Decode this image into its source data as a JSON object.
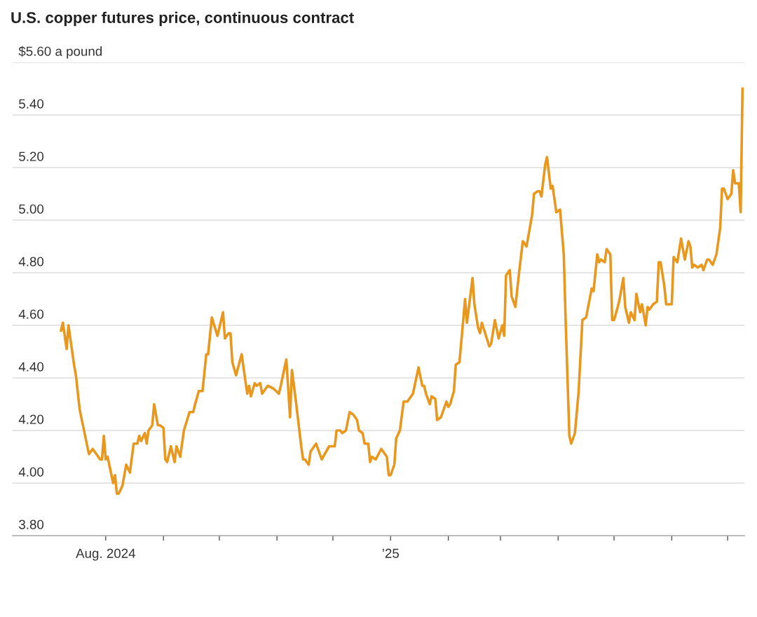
{
  "chart_data": {
    "type": "line",
    "title": "U.S. copper futures price, continuous contract",
    "x": [
      "2024-07-08",
      "2024-07-09",
      "2024-07-11",
      "2024-07-12",
      "2024-07-15",
      "2024-07-16",
      "2024-07-18",
      "2024-07-23",
      "2024-07-25",
      "2024-07-26",
      "2024-07-29",
      "2024-07-30",
      "2024-07-31",
      "2024-08-01",
      "2024-08-02",
      "2024-08-05",
      "2024-08-06",
      "2024-08-07",
      "2024-08-08",
      "2024-08-10",
      "2024-08-12",
      "2024-08-14",
      "2024-08-16",
      "2024-08-18",
      "2024-08-19",
      "2024-08-20",
      "2024-08-22",
      "2024-08-23",
      "2024-08-24",
      "2024-08-26",
      "2024-08-27",
      "2024-08-29",
      "2024-08-30",
      "2024-09-01",
      "2024-09-02",
      "2024-09-03",
      "2024-09-05",
      "2024-09-07",
      "2024-09-08",
      "2024-09-10",
      "2024-09-12",
      "2024-09-15",
      "2024-09-17",
      "2024-09-18",
      "2024-09-20",
      "2024-09-22",
      "2024-09-24",
      "2024-09-25",
      "2024-09-27",
      "2024-09-30",
      "2024-10-03",
      "2024-10-04",
      "2024-10-06",
      "2024-10-07",
      "2024-10-08",
      "2024-10-10",
      "2024-10-13",
      "2024-10-16",
      "2024-10-17",
      "2024-10-18",
      "2024-10-20",
      "2024-10-21",
      "2024-10-23",
      "2024-10-24",
      "2024-10-27",
      "2024-10-30",
      "2024-11-02",
      "2024-11-03",
      "2024-11-06",
      "2024-11-08",
      "2024-11-09",
      "2024-11-11",
      "2024-11-14",
      "2024-11-15",
      "2024-11-16",
      "2024-11-18",
      "2024-11-19",
      "2024-11-22",
      "2024-11-25",
      "2024-11-29",
      "2024-12-02",
      "2024-12-03",
      "2024-12-05",
      "2024-12-06",
      "2024-12-08",
      "2024-12-10",
      "2024-12-12",
      "2024-12-14",
      "2024-12-15",
      "2024-12-17",
      "2024-12-18",
      "2024-12-20",
      "2024-12-21",
      "2024-12-22",
      "2024-12-24",
      "2024-12-27",
      "2024-12-28",
      "2024-12-30",
      "2024-12-31",
      "2025-01-01",
      "2025-01-03",
      "2025-01-04",
      "2025-01-06",
      "2025-01-08",
      "2025-01-10",
      "2025-01-13",
      "2025-01-16",
      "2025-01-18",
      "2025-01-19",
      "2025-01-20",
      "2025-01-22",
      "2025-01-23",
      "2025-01-25",
      "2025-01-26",
      "2025-01-28",
      "2025-01-30",
      "2025-01-31",
      "2025-02-01",
      "2025-02-02",
      "2025-02-04",
      "2025-02-05",
      "2025-02-07",
      "2025-02-10",
      "2025-02-11",
      "2025-02-14",
      "2025-02-15",
      "2025-02-17",
      "2025-02-18",
      "2025-02-19",
      "2025-02-23",
      "2025-02-24",
      "2025-02-26",
      "2025-02-28",
      "2025-03-02",
      "2025-03-03",
      "2025-03-04",
      "2025-03-06",
      "2025-03-07",
      "2025-03-09",
      "2025-03-11",
      "2025-03-13",
      "2025-03-15",
      "2025-03-18",
      "2025-03-19",
      "2025-03-21",
      "2025-03-22",
      "2025-03-23",
      "2025-03-25",
      "2025-03-26",
      "2025-03-28",
      "2025-03-29",
      "2025-03-31",
      "2025-04-02",
      "2025-04-04",
      "2025-04-05",
      "2025-04-07",
      "2025-04-08",
      "2025-04-10",
      "2025-04-12",
      "2025-04-14",
      "2025-04-16",
      "2025-04-19",
      "2025-04-20",
      "2025-04-22",
      "2025-04-23",
      "2025-04-24",
      "2025-04-26",
      "2025-04-27",
      "2025-04-29",
      "2025-04-30",
      "2025-05-01",
      "2025-05-03",
      "2025-05-04",
      "2025-05-06",
      "2025-05-07",
      "2025-05-09",
      "2025-05-10",
      "2025-05-12",
      "2025-05-13",
      "2025-05-15",
      "2025-05-16",
      "2025-05-18",
      "2025-05-19",
      "2025-05-20",
      "2025-05-22",
      "2025-05-24",
      "2025-05-25",
      "2025-05-26",
      "2025-05-28",
      "2025-05-29",
      "2025-06-01",
      "2025-06-02",
      "2025-06-04",
      "2025-06-06",
      "2025-06-08",
      "2025-06-10",
      "2025-06-11",
      "2025-06-12",
      "2025-06-13",
      "2025-06-15",
      "2025-06-17",
      "2025-06-18",
      "2025-06-20",
      "2025-06-21",
      "2025-06-23",
      "2025-06-25",
      "2025-06-27",
      "2025-06-28",
      "2025-06-29",
      "2025-07-01",
      "2025-07-03",
      "2025-07-04",
      "2025-07-05",
      "2025-07-07",
      "2025-07-08",
      "2025-07-09"
    ],
    "series": [
      {
        "color": "#e8971f",
        "values": [
          4.58,
          4.61,
          4.51,
          4.6,
          4.45,
          4.41,
          4.28,
          4.11,
          4.13,
          4.12,
          4.09,
          4.09,
          4.18,
          4.09,
          4.1,
          4.0,
          4.03,
          3.96,
          3.96,
          3.99,
          4.07,
          4.04,
          4.15,
          4.15,
          4.18,
          4.16,
          4.19,
          4.15,
          4.2,
          4.22,
          4.3,
          4.22,
          4.22,
          4.21,
          4.09,
          4.08,
          4.14,
          4.08,
          4.14,
          4.1,
          4.2,
          4.27,
          4.27,
          4.3,
          4.35,
          4.35,
          4.49,
          4.49,
          4.63,
          4.56,
          4.65,
          4.55,
          4.57,
          4.57,
          4.46,
          4.41,
          4.49,
          4.34,
          4.37,
          4.33,
          4.38,
          4.37,
          4.38,
          4.34,
          4.37,
          4.36,
          4.34,
          4.37,
          4.47,
          4.25,
          4.43,
          4.32,
          4.14,
          4.09,
          4.09,
          4.07,
          4.12,
          4.15,
          4.09,
          4.14,
          4.14,
          4.2,
          4.2,
          4.19,
          4.2,
          4.27,
          4.26,
          4.24,
          4.2,
          4.19,
          4.15,
          4.15,
          4.08,
          4.1,
          4.09,
          4.13,
          4.12,
          4.1,
          4.03,
          4.03,
          4.07,
          4.17,
          4.2,
          4.31,
          4.31,
          4.34,
          4.44,
          4.37,
          4.37,
          4.34,
          4.3,
          4.33,
          4.32,
          4.24,
          4.25,
          4.29,
          4.31,
          4.29,
          4.3,
          4.35,
          4.45,
          4.46,
          4.7,
          4.61,
          4.78,
          4.68,
          4.59,
          4.57,
          4.61,
          4.52,
          4.53,
          4.62,
          4.55,
          4.6,
          4.56,
          4.79,
          4.81,
          4.71,
          4.67,
          4.8,
          4.92,
          4.9,
          5.02,
          5.1,
          5.11,
          5.11,
          5.09,
          5.21,
          5.24,
          5.12,
          5.13,
          5.03,
          5.04,
          4.87,
          4.62,
          4.18,
          4.15,
          4.19,
          4.35,
          4.62,
          4.63,
          4.74,
          4.73,
          4.87,
          4.84,
          4.85,
          4.84,
          4.89,
          4.87,
          4.62,
          4.62,
          4.67,
          4.7,
          4.78,
          4.67,
          4.61,
          4.65,
          4.62,
          4.72,
          4.65,
          4.68,
          4.6,
          4.67,
          4.66,
          4.68,
          4.69,
          4.84,
          4.84,
          4.75,
          4.68,
          4.68,
          4.86,
          4.84,
          4.93,
          4.85,
          4.92,
          4.9,
          4.82,
          4.83,
          4.82,
          4.83,
          4.81,
          4.85,
          4.85,
          4.83,
          4.87,
          4.97,
          5.12,
          5.12,
          5.08,
          5.1,
          5.19,
          5.14,
          5.14,
          5.03,
          5.5
        ]
      }
    ],
    "xlim": [
      "2024-06-12",
      "2025-07-10"
    ],
    "xticks": [
      {
        "value": "2024-08-01",
        "label": "Aug. 2024"
      },
      {
        "value": "2024-09-01",
        "label": null
      },
      {
        "value": "2024-10-01",
        "label": null
      },
      {
        "value": "2024-11-01",
        "label": null
      },
      {
        "value": "2024-12-01",
        "label": null
      },
      {
        "value": "2025-01-01",
        "label": "’25"
      },
      {
        "value": "2025-02-01",
        "label": null
      },
      {
        "value": "2025-03-01",
        "label": null
      },
      {
        "value": "2025-04-01",
        "label": null
      },
      {
        "value": "2025-05-01",
        "label": null
      },
      {
        "value": "2025-06-01",
        "label": null
      },
      {
        "value": "2025-07-01",
        "label": null
      }
    ],
    "ylim": [
      3.8,
      5.6
    ],
    "yticks": [
      {
        "value": 3.8,
        "label": "3.80"
      },
      {
        "value": 4.0,
        "label": "4.00"
      },
      {
        "value": 4.2,
        "label": "4.20"
      },
      {
        "value": 4.4,
        "label": "4.40"
      },
      {
        "value": 4.6,
        "label": "4.60"
      },
      {
        "value": 4.8,
        "label": "4.80"
      },
      {
        "value": 5.0,
        "label": "5.00"
      },
      {
        "value": 5.2,
        "label": "5.20"
      },
      {
        "value": 5.4,
        "label": "5.40"
      },
      {
        "value": 5.6,
        "label": "$5.60 a pound"
      }
    ],
    "grid": "y",
    "marker": "none",
    "line_style": "solid"
  }
}
